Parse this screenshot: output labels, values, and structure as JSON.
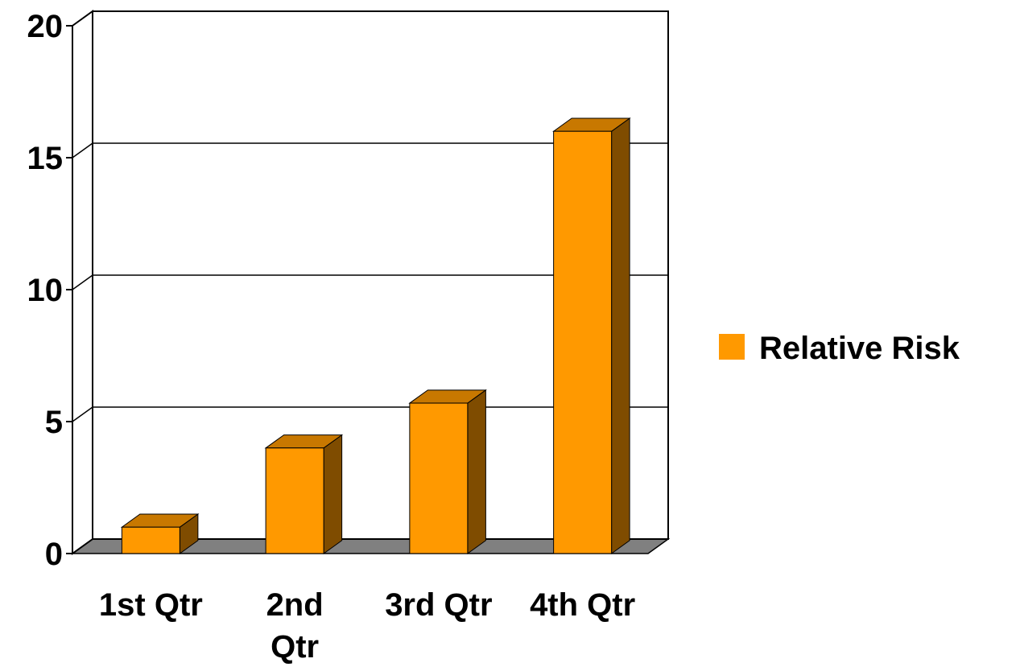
{
  "chart_data": {
    "type": "bar",
    "categories": [
      "1st Qtr",
      "2nd Qtr",
      "3rd Qtr",
      "4th Qtr"
    ],
    "category_label_lines": [
      [
        "1st Qtr"
      ],
      [
        "2nd",
        "Qtr"
      ],
      [
        "3rd Qtr"
      ],
      [
        "4th Qtr"
      ]
    ],
    "series": [
      {
        "name": "Relative Risk",
        "values": [
          1,
          4,
          5.7,
          16
        ]
      }
    ],
    "ylim": [
      0,
      20
    ],
    "yticks": [
      "0",
      "5",
      "10",
      "15",
      "20"
    ],
    "title": "",
    "xlabel": "",
    "ylabel": "",
    "grid": true,
    "legend_position": "right",
    "style": "3d",
    "colors": {
      "bar_front": "#FF9900",
      "bar_top": "#C87800",
      "bar_side": "#7F4C00",
      "floor": "#808080"
    }
  }
}
